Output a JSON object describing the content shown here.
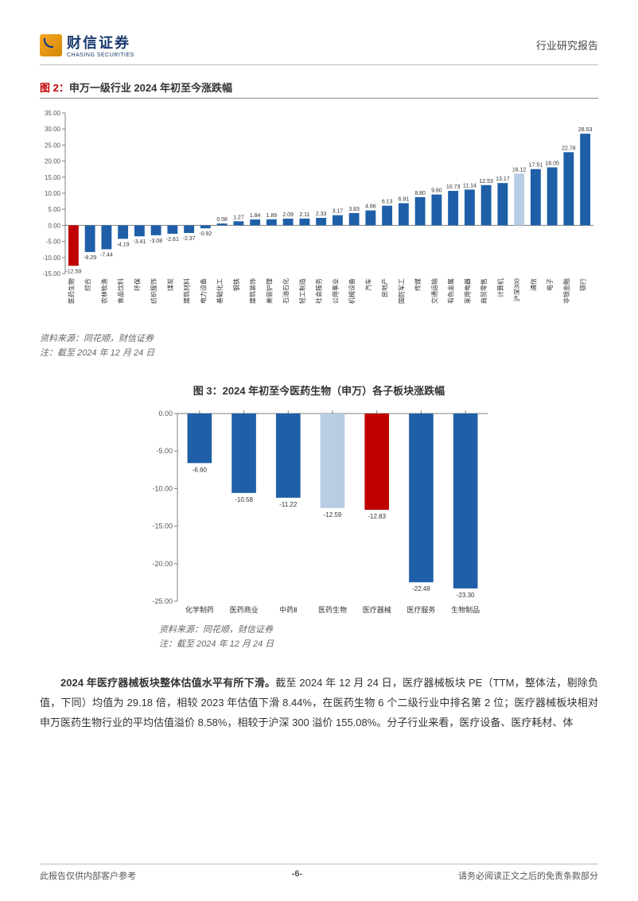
{
  "header": {
    "brand_cn": "财信证券",
    "brand_en": "CHASING SECURITIES",
    "right": "行业研究报告"
  },
  "chart1": {
    "type": "bar",
    "title_prefix": "图 2：",
    "title_rest": "申万一级行业 2024 年初至今涨跌幅",
    "ylim": [
      -15,
      35
    ],
    "ytick_step": 5,
    "axis_color": "#7f7f7f",
    "grid_color": "#e0e0e0",
    "background_color": "#ffffff",
    "label_fontsize": 8,
    "value_fontsize": 7,
    "bars": [
      {
        "label": "医药生物",
        "value": -12.59,
        "color": "#c00000"
      },
      {
        "label": "综合",
        "value": -8.29,
        "color": "#1f5fa8"
      },
      {
        "label": "农林牧渔",
        "value": -7.44,
        "color": "#1f5fa8"
      },
      {
        "label": "食品饮料",
        "value": -4.19,
        "color": "#1f5fa8"
      },
      {
        "label": "环保",
        "value": -3.41,
        "color": "#1f5fa8"
      },
      {
        "label": "纺织服饰",
        "value": -3.08,
        "color": "#1f5fa8"
      },
      {
        "label": "煤炭",
        "value": -2.61,
        "color": "#1f5fa8"
      },
      {
        "label": "建筑材料",
        "value": -2.37,
        "color": "#1f5fa8"
      },
      {
        "label": "电力设备",
        "value": -0.92,
        "color": "#1f5fa8"
      },
      {
        "label": "基础化工",
        "value": 0.58,
        "color": "#1f5fa8"
      },
      {
        "label": "钢铁",
        "value": 1.27,
        "color": "#1f5fa8"
      },
      {
        "label": "建筑装饰",
        "value": 1.84,
        "color": "#1f5fa8"
      },
      {
        "label": "美容护理",
        "value": 1.89,
        "color": "#1f5fa8"
      },
      {
        "label": "石油石化",
        "value": 2.09,
        "color": "#1f5fa8"
      },
      {
        "label": "轻工制造",
        "value": 2.11,
        "color": "#1f5fa8"
      },
      {
        "label": "社会服务",
        "value": 2.33,
        "color": "#1f5fa8"
      },
      {
        "label": "公用事业",
        "value": 3.17,
        "color": "#1f5fa8"
      },
      {
        "label": "机械设备",
        "value": 3.83,
        "color": "#1f5fa8"
      },
      {
        "label": "汽车",
        "value": 4.66,
        "color": "#1f5fa8"
      },
      {
        "label": "房地产",
        "value": 6.13,
        "color": "#1f5fa8"
      },
      {
        "label": "国防军工",
        "value": 6.91,
        "color": "#1f5fa8"
      },
      {
        "label": "传媒",
        "value": 8.8,
        "color": "#1f5fa8"
      },
      {
        "label": "交通运输",
        "value": 9.6,
        "color": "#1f5fa8"
      },
      {
        "label": "有色金属",
        "value": 10.73,
        "color": "#1f5fa8"
      },
      {
        "label": "家用电器",
        "value": 11.14,
        "color": "#1f5fa8"
      },
      {
        "label": "商贸零售",
        "value": 12.53,
        "color": "#1f5fa8"
      },
      {
        "label": "计算机",
        "value": 13.17,
        "color": "#1f5fa8"
      },
      {
        "label": "沪深300",
        "value": 16.12,
        "color": "#b8cce4"
      },
      {
        "label": "通信",
        "value": 17.51,
        "color": "#1f5fa8"
      },
      {
        "label": "电子",
        "value": 18.05,
        "color": "#1f5fa8"
      },
      {
        "label": "非银金融",
        "value": 22.78,
        "color": "#1f5fa8"
      },
      {
        "label": "银行",
        "value": 28.53,
        "color": "#1f5fa8"
      }
    ],
    "source1": "资料来源：同花顺，财信证券",
    "source2": "注：截至 2024 年 12 月 24 日"
  },
  "chart2": {
    "type": "bar",
    "title_prefix": "图 3：",
    "title_rest": "2024 年初至今医药生物（申万）各子板块涨跌幅",
    "ylim": [
      -25,
      0
    ],
    "ytick_step": 5,
    "axis_color": "#7f7f7f",
    "background_color": "#ffffff",
    "label_fontsize": 9,
    "value_fontsize": 8,
    "bars": [
      {
        "label": "化学制药",
        "value": -6.6,
        "color": "#1f5fa8"
      },
      {
        "label": "医药商业",
        "value": -10.58,
        "color": "#1f5fa8"
      },
      {
        "label": "中药Ⅱ",
        "value": -11.22,
        "color": "#1f5fa8"
      },
      {
        "label": "医药生物",
        "value": -12.59,
        "color": "#b8cce4"
      },
      {
        "label": "医疗器械",
        "value": -12.83,
        "color": "#c00000"
      },
      {
        "label": "医疗服务",
        "value": -22.48,
        "color": "#1f5fa8"
      },
      {
        "label": "生物制品",
        "value": -23.3,
        "color": "#1f5fa8"
      }
    ],
    "source1": "资料来源：同花顺，财信证券",
    "source2": "注：截至 2024 年 12 月 24 日"
  },
  "body": {
    "bold_lead": "2024 年医疗器械板块整体估值水平有所下滑。",
    "rest": "截至 2024 年 12 月 24 日，医疗器械板块 PE（TTM，整体法，剔除负值，下同）均值为 29.18 倍，相较 2023 年估值下滑 8.44%，在医药生物 6 个二级行业中排名第 2 位；医疗器械板块相对申万医药生物行业的平均估值溢价 8.58%，相较于沪深 300 溢价 155.08%。分子行业来看，医疗设备、医疗耗材、体"
  },
  "footer": {
    "left": "此报告仅供内部客户参考",
    "center": "-6-",
    "right": "请务必阅读正文之后的免责条款部分"
  }
}
